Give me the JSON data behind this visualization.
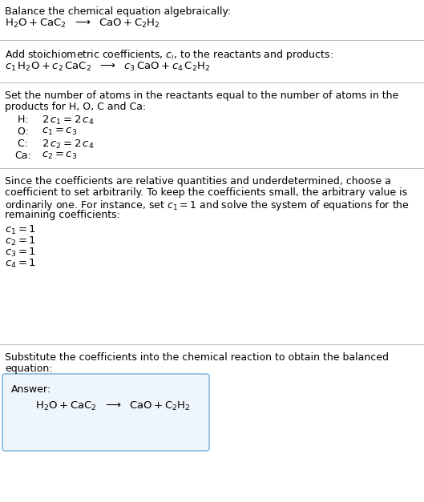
{
  "title_line1": "Balance the chemical equation algebraically:",
  "title_line2_math": "$\\mathrm{H_2O + CaC_2}$  $\\longrightarrow$  $\\mathrm{CaO + C_2H_2}$",
  "section2_header": "Add stoichiometric coefficients, $c_i$, to the reactants and products:",
  "section2_math": "$c_1\\,\\mathrm{H_2O} + c_2\\,\\mathrm{CaC_2}$  $\\longrightarrow$  $c_3\\,\\mathrm{CaO} + c_4\\,\\mathrm{C_2H_2}$",
  "section3_header_line1": "Set the number of atoms in the reactants equal to the number of atoms in the",
  "section3_header_line2": "products for H, O, C and Ca:",
  "section3_equations": [
    [
      " H:",
      "$2\\,c_1 = 2\\,c_4$"
    ],
    [
      " O:",
      "$c_1 = c_3$"
    ],
    [
      " C:",
      "$2\\,c_2 = 2\\,c_4$"
    ],
    [
      "Ca:",
      "$c_2 = c_3$"
    ]
  ],
  "section4_header_lines": [
    "Since the coefficients are relative quantities and underdetermined, choose a",
    "coefficient to set arbitrarily. To keep the coefficients small, the arbitrary value is",
    "ordinarily one. For instance, set $c_1 = 1$ and solve the system of equations for the",
    "remaining coefficients:"
  ],
  "section4_equations": [
    "$c_1 = 1$",
    "$c_2 = 1$",
    "$c_3 = 1$",
    "$c_4 = 1$"
  ],
  "section5_header_line1": "Substitute the coefficients into the chemical reaction to obtain the balanced",
  "section5_header_line2": "equation:",
  "answer_label": "Answer:",
  "answer_math": "$\\mathrm{H_2O + CaC_2}$  $\\longrightarrow$  $\\mathrm{CaO + C_2H_2}$",
  "bg_color": "#ffffff",
  "text_color": "#000000",
  "line_color": "#bbbbbb",
  "box_border_color": "#88bbdd",
  "box_bg_color": "#eef6fc",
  "font_size": 9.0,
  "font_size_math": 9.5
}
